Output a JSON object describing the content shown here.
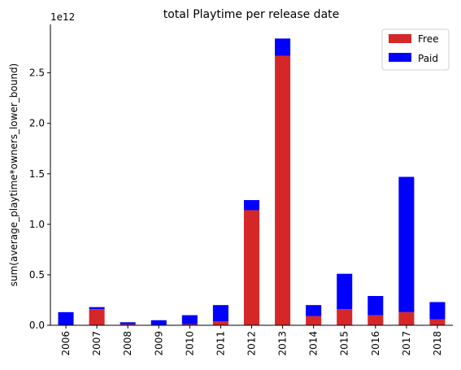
{
  "chart_data": {
    "type": "bar",
    "stacked": true,
    "title": "total Playtime per release date",
    "xlabel": "",
    "ylabel": "sum(average_playtime*owners_lower_bound)",
    "y_exponent_label": "1e12",
    "categories": [
      "2006",
      "2007",
      "2008",
      "2009",
      "2010",
      "2011",
      "2012",
      "2013",
      "2014",
      "2015",
      "2016",
      "2017",
      "2018"
    ],
    "series": [
      {
        "name": "Free",
        "color": "#d62728",
        "values": [
          0.0,
          0.16,
          0.01,
          0.0,
          0.01,
          0.04,
          1.14,
          2.67,
          0.09,
          0.16,
          0.1,
          0.13,
          0.06
        ]
      },
      {
        "name": "Paid",
        "color": "#0000ff",
        "values": [
          0.13,
          0.02,
          0.02,
          0.05,
          0.09,
          0.16,
          0.1,
          0.17,
          0.11,
          0.35,
          0.19,
          1.34,
          0.17
        ]
      }
    ],
    "ylim": [
      0,
      2.98
    ],
    "yticks": [
      "0.0",
      "0.5",
      "1.0",
      "1.5",
      "2.0",
      "2.5"
    ],
    "ytick_values": [
      0,
      0.5,
      1.0,
      1.5,
      2.0,
      2.5
    ],
    "grid": false,
    "legend_position": "top-right"
  }
}
